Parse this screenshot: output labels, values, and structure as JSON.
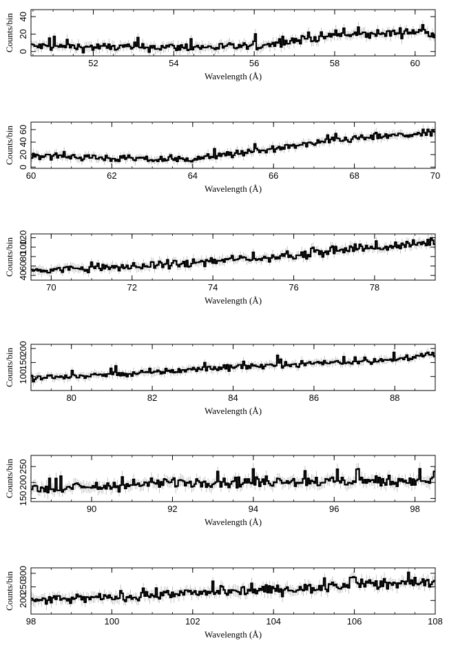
{
  "chart_data": [
    {
      "type": "line",
      "xlabel": "Wavelength (Å)",
      "ylabel": "Counts/bin",
      "xlim": [
        50.45,
        60.5
      ],
      "ylim": [
        -5,
        48
      ],
      "xticks": [
        52,
        54,
        56,
        58,
        60
      ],
      "yticks": [
        0,
        20,
        40
      ],
      "trend": {
        "x": [
          50.45,
          52,
          54,
          55,
          56,
          57,
          58,
          59,
          60,
          60.5
        ],
        "y": [
          6,
          5,
          5,
          5,
          6,
          13,
          18,
          20,
          23,
          21
        ]
      },
      "noise": 3.5,
      "err": 5
    },
    {
      "type": "line",
      "xlabel": "Wavelength (Å)",
      "ylabel": "Counts/bin",
      "xlim": [
        60,
        70
      ],
      "ylim": [
        -2,
        72
      ],
      "xticks": [
        60,
        62,
        64,
        66,
        68,
        70
      ],
      "yticks": [
        0,
        20,
        40,
        60
      ],
      "trend": {
        "x": [
          60,
          61,
          62,
          63,
          64,
          65,
          66,
          67,
          68,
          69,
          70
        ],
        "y": [
          20,
          17,
          14,
          12,
          13,
          21,
          28,
          38,
          46,
          50,
          55
        ]
      },
      "noise": 4,
      "err": 6
    },
    {
      "type": "line",
      "xlabel": "Wavelength (Å)",
      "ylabel": "Counts/bin",
      "xlim": [
        69.5,
        79.5
      ],
      "ylim": [
        30,
        128
      ],
      "xticks": [
        70,
        72,
        74,
        76,
        78
      ],
      "yticks": [
        40,
        60,
        80,
        100,
        120
      ],
      "trend": {
        "x": [
          69.5,
          71,
          72,
          73,
          74,
          75,
          76,
          77,
          78,
          79,
          79.5
        ],
        "y": [
          50,
          56,
          58,
          63,
          70,
          75,
          83,
          92,
          98,
          106,
          112
        ]
      },
      "noise": 6,
      "err": 9
    },
    {
      "type": "line",
      "xlabel": "Wavelength (Å)",
      "ylabel": "Counts/bin",
      "xlim": [
        79,
        89
      ],
      "ylim": [
        50,
        215
      ],
      "xticks": [
        80,
        82,
        84,
        86,
        88
      ],
      "yticks": [
        100,
        150,
        200
      ],
      "trend": {
        "x": [
          79,
          80,
          81,
          82,
          83,
          84,
          85,
          86,
          87,
          88,
          89
        ],
        "y": [
          95,
          100,
          108,
          115,
          125,
          135,
          140,
          148,
          153,
          160,
          180
        ]
      },
      "noise": 8,
      "err": 13
    },
    {
      "type": "line",
      "xlabel": "Wavelength (Å)",
      "ylabel": "Counts/bin",
      "xlim": [
        88.5,
        98.5
      ],
      "ylim": [
        140,
        285
      ],
      "xticks": [
        90,
        92,
        94,
        96,
        98
      ],
      "yticks": [
        150,
        200,
        250
      ],
      "trend": {
        "x": [
          88.5,
          90,
          91,
          92,
          93,
          94,
          95,
          96,
          97,
          98,
          98.5
        ],
        "y": [
          180,
          185,
          192,
          200,
          203,
          202,
          205,
          203,
          205,
          207,
          205
        ]
      },
      "noise": 12,
      "err": 16
    },
    {
      "type": "line",
      "xlabel": "Wavelength (Å)",
      "ylabel": "Counts/bin",
      "xlim": [
        98,
        108
      ],
      "ylim": [
        150,
        320
      ],
      "xticks": [
        98,
        100,
        102,
        104,
        106,
        108
      ],
      "yticks": [
        200,
        250,
        300
      ],
      "trend": {
        "x": [
          98,
          99,
          100,
          101,
          102,
          103,
          104,
          105,
          106,
          107,
          108
        ],
        "y": [
          200,
          205,
          212,
          220,
          228,
          232,
          240,
          245,
          255,
          262,
          268
        ]
      },
      "noise": 12,
      "err": 18
    }
  ]
}
